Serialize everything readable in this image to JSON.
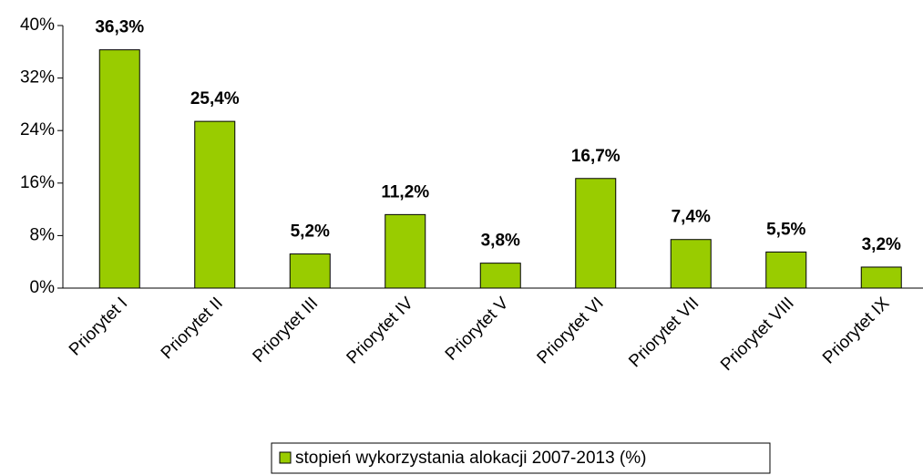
{
  "chart_data": {
    "type": "bar",
    "categories": [
      "Priorytet I",
      "Priorytet II",
      "Priorytet III",
      "Priorytet IV",
      "Priorytet V",
      "Priorytet VI",
      "Priorytet VII",
      "Priorytet VIII",
      "Priorytet IX"
    ],
    "series": [
      {
        "name": "stopień wykorzystania alokacji 2007-2013 (%)",
        "color": "#99cc00",
        "values": [
          36.3,
          25.4,
          5.2,
          11.2,
          3.8,
          16.7,
          7.4,
          5.5,
          3.2
        ],
        "value_labels": [
          "36,3%",
          "25,4%",
          "5,2%",
          "11,2%",
          "3,8%",
          "16,7%",
          "7,4%",
          "5,5%",
          "3,2%"
        ]
      }
    ],
    "ylim": [
      0,
      40
    ],
    "yticks": [
      {
        "value": 0,
        "label": "0%"
      },
      {
        "value": 8,
        "label": "8%"
      },
      {
        "value": 16,
        "label": "16%"
      },
      {
        "value": 24,
        "label": "24%"
      },
      {
        "value": 32,
        "label": "32%"
      },
      {
        "value": 40,
        "label": "40%"
      }
    ],
    "legend": "bottom"
  }
}
